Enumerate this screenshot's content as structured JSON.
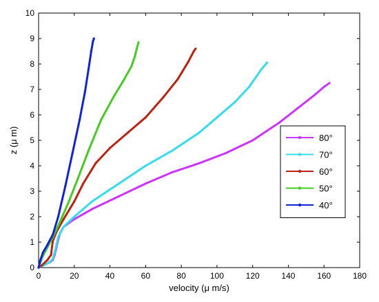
{
  "chart_data": {
    "type": "line",
    "xlabel": "velocity (μ m/s)",
    "ylabel": "z (μ m)",
    "xlim": [
      0,
      180
    ],
    "ylim": [
      0,
      10
    ],
    "xticks": [
      "0",
      "20",
      "40",
      "60",
      "80",
      "100",
      "120",
      "140",
      "160",
      "180"
    ],
    "yticks": [
      "0",
      "1",
      "2",
      "3",
      "4",
      "5",
      "6",
      "7",
      "8",
      "9",
      "10"
    ],
    "grid": false,
    "legend_position": "right",
    "series": [
      {
        "name": "80°",
        "color": "#cc33ff",
        "x": [
          0,
          3,
          6,
          8,
          9,
          10,
          11,
          12,
          14,
          20,
          30,
          45,
          60,
          75,
          90,
          105,
          120,
          135,
          145,
          155,
          160,
          163
        ],
        "y": [
          0,
          0.1,
          0.2,
          0.3,
          0.5,
          0.8,
          1.1,
          1.35,
          1.6,
          1.9,
          2.3,
          2.8,
          3.3,
          3.75,
          4.1,
          4.5,
          5.0,
          5.7,
          6.25,
          6.8,
          7.1,
          7.25
        ]
      },
      {
        "name": "70°",
        "color": "#33ddee",
        "x": [
          0,
          3,
          6,
          8,
          9,
          10,
          11,
          14,
          20,
          30,
          45,
          60,
          75,
          90,
          100,
          110,
          118,
          125,
          128
        ],
        "y": [
          0,
          0.1,
          0.2,
          0.35,
          0.6,
          0.9,
          1.2,
          1.6,
          2.0,
          2.6,
          3.3,
          4.0,
          4.6,
          5.3,
          5.9,
          6.5,
          7.1,
          7.8,
          8.05
        ]
      },
      {
        "name": "60°",
        "color": "#bb2211",
        "x": [
          0,
          2,
          5,
          7,
          7.5,
          8,
          10,
          14,
          20,
          25,
          32,
          40,
          50,
          60,
          70,
          78,
          84,
          87,
          88
        ],
        "y": [
          0,
          0.1,
          0.3,
          0.5,
          0.8,
          1.05,
          1.4,
          1.9,
          2.6,
          3.3,
          4.1,
          4.7,
          5.3,
          5.9,
          6.7,
          7.4,
          8.1,
          8.5,
          8.6
        ]
      },
      {
        "name": "50°",
        "color": "#44cc22",
        "x": [
          0,
          2,
          5,
          8,
          12,
          17,
          22,
          28,
          35,
          42,
          48,
          52,
          54,
          55,
          56
        ],
        "y": [
          0,
          0.4,
          0.8,
          1.2,
          1.8,
          2.6,
          3.5,
          4.6,
          5.8,
          6.7,
          7.4,
          7.9,
          8.3,
          8.6,
          8.85
        ]
      },
      {
        "name": "40°",
        "color": "#1122dd",
        "x": [
          0,
          1,
          2.5,
          5,
          8,
          11,
          15,
          19,
          23,
          26,
          28,
          29.5,
          30.5,
          31
        ],
        "y": [
          0,
          0.3,
          0.6,
          0.9,
          1.3,
          2.0,
          3.2,
          4.5,
          5.8,
          6.9,
          7.8,
          8.5,
          8.9,
          9.0
        ]
      }
    ]
  }
}
